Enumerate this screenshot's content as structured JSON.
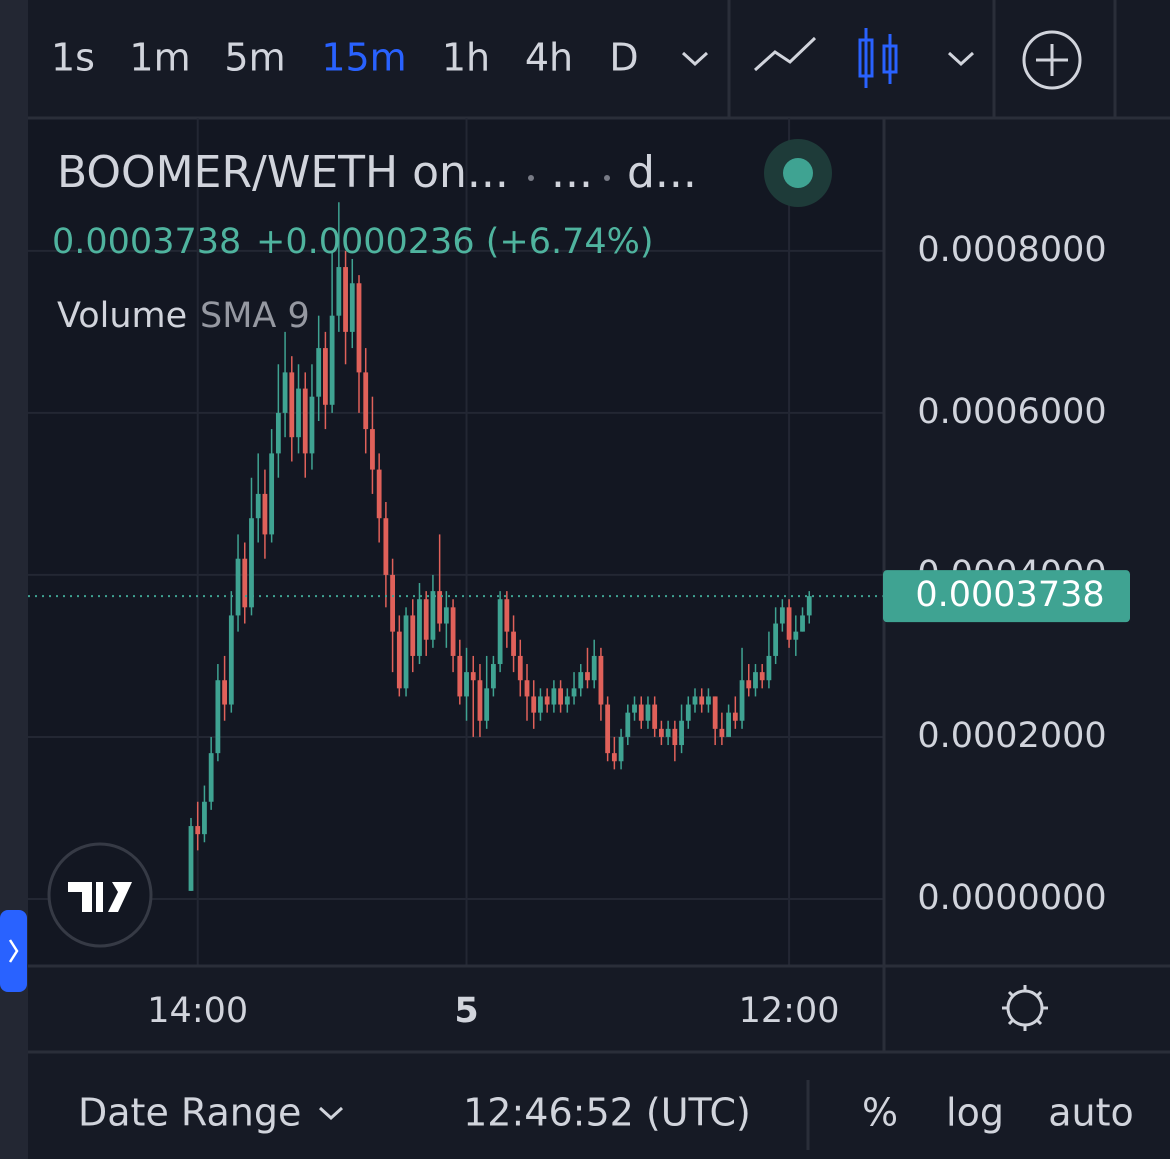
{
  "toolbar": {
    "intervals": [
      "1s",
      "1m",
      "5m",
      "15m",
      "1h",
      "4h",
      "D"
    ],
    "active": 3
  },
  "legend": {
    "symbol": [
      "BOOMER/WETH on...",
      "...",
      "d..."
    ],
    "change": "+0.0000236 (+6.74%)",
    "volume": "Volume",
    "sma": "SMA 9"
  },
  "bottom_bar": {
    "date_range": "Date Range",
    "clock": "12:46:52 (UTC)",
    "percent": "%",
    "log": "log",
    "auto": "auto"
  },
  "chart_data": {
    "type": "candlestick",
    "categories": [
      null,
      "14:00",
      null,
      null,
      null,
      null,
      null,
      null,
      null,
      null,
      null,
      null,
      null,
      null,
      null,
      null,
      null,
      null,
      null,
      null,
      null,
      null,
      null,
      null,
      null,
      null,
      null,
      null,
      null,
      null,
      null,
      null,
      null,
      null,
      null,
      null,
      null,
      null,
      null,
      null,
      null,
      "5",
      null,
      null,
      null,
      null,
      null,
      null,
      null,
      null,
      null,
      null,
      null,
      null,
      null,
      null,
      null,
      null,
      null,
      null,
      null,
      null,
      null,
      null,
      null,
      null,
      null,
      null,
      null,
      null,
      null,
      null,
      null,
      null,
      null,
      null,
      null,
      null,
      null,
      null,
      null,
      null,
      null,
      null,
      null,
      null,
      null,
      null,
      null,
      "12:00",
      null,
      null,
      null
    ],
    "open": [
      1e-05,
      9e-05,
      8e-05,
      0.00012,
      0.00018,
      0.00027,
      0.00024,
      0.00035,
      0.00042,
      0.00036,
      0.00047,
      0.0005,
      0.00045,
      0.00055,
      0.0006,
      0.00065,
      0.00057,
      0.00063,
      0.00055,
      0.00062,
      0.00068,
      0.00061,
      0.00072,
      0.00078,
      0.0007,
      0.00076,
      0.00065,
      0.00058,
      0.00053,
      0.00047,
      0.0004,
      0.00033,
      0.00026,
      0.00035,
      0.0003,
      0.00037,
      0.00032,
      0.00038,
      0.00034,
      0.00036,
      0.0003,
      0.00025,
      0.00028,
      0.00027,
      0.00022,
      0.00026,
      0.00029,
      0.00037,
      0.00033,
      0.0003,
      0.00027,
      0.00025,
      0.00023,
      0.00025,
      0.00024,
      0.00026,
      0.00024,
      0.00025,
      0.00026,
      0.00028,
      0.00027,
      0.0003,
      0.00024,
      0.00018,
      0.00017,
      0.0002,
      0.00023,
      0.00024,
      0.00022,
      0.00024,
      0.00021,
      0.0002,
      0.00021,
      0.00019,
      0.00022,
      0.00024,
      0.00025,
      0.00024,
      0.00025,
      0.00021,
      0.0002,
      0.00023,
      0.00022,
      0.00027,
      0.00026,
      0.00028,
      0.00027,
      0.0003,
      0.00034,
      0.00036,
      0.00032,
      0.00033,
      0.00035
    ],
    "high": [
      0.0001,
      0.00012,
      0.00014,
      0.0002,
      0.00029,
      0.0003,
      0.00038,
      0.00045,
      0.00044,
      0.00052,
      0.00055,
      0.00053,
      0.00058,
      0.00066,
      0.0007,
      0.00067,
      0.00066,
      0.00065,
      0.00066,
      0.00072,
      0.0007,
      0.0008,
      0.00086,
      0.0008,
      0.00079,
      0.00077,
      0.00068,
      0.00062,
      0.00055,
      0.00049,
      0.00042,
      0.00035,
      0.00036,
      0.00037,
      0.00039,
      0.00038,
      0.0004,
      0.00045,
      0.00038,
      0.00037,
      0.00032,
      0.00031,
      0.0003,
      0.00029,
      0.0003,
      0.0003,
      0.00038,
      0.00038,
      0.00035,
      0.00032,
      0.00029,
      0.00027,
      0.00026,
      0.00026,
      0.00027,
      0.00027,
      0.00026,
      0.00028,
      0.00029,
      0.00031,
      0.00032,
      0.00031,
      0.00025,
      0.0002,
      0.00021,
      0.00024,
      0.00025,
      0.00025,
      0.00025,
      0.00025,
      0.00022,
      0.00022,
      0.00022,
      0.00024,
      0.00025,
      0.00026,
      0.00026,
      0.00026,
      0.00025,
      0.00023,
      0.00024,
      0.00025,
      0.00031,
      0.00029,
      0.00029,
      0.00029,
      0.00033,
      0.00036,
      0.00037,
      0.00037,
      0.00035,
      0.00036,
      0.00038
    ],
    "low": [
      1e-05,
      6e-05,
      7e-05,
      0.00011,
      0.00017,
      0.00022,
      0.00023,
      0.00033,
      0.00034,
      0.00035,
      0.00044,
      0.00042,
      0.00044,
      0.00052,
      0.00057,
      0.00054,
      0.00055,
      0.00052,
      0.00053,
      0.00059,
      0.00058,
      0.0006,
      0.0007,
      0.00066,
      0.00068,
      0.0006,
      0.00055,
      0.0005,
      0.00044,
      0.00036,
      0.00028,
      0.00025,
      0.00025,
      0.00028,
      0.00029,
      0.0003,
      0.00031,
      0.00033,
      0.00031,
      0.00028,
      0.00024,
      0.00022,
      0.0002,
      0.0002,
      0.00021,
      0.00025,
      0.00028,
      0.00031,
      0.00028,
      0.00025,
      0.00022,
      0.00021,
      0.00022,
      0.00023,
      0.00023,
      0.00023,
      0.00023,
      0.00024,
      0.00025,
      0.00026,
      0.00026,
      0.00022,
      0.00017,
      0.00016,
      0.00016,
      0.00019,
      0.00022,
      0.00021,
      0.00021,
      0.0002,
      0.00019,
      0.00019,
      0.00017,
      0.00018,
      0.00021,
      0.00023,
      0.00023,
      0.00023,
      0.00019,
      0.00019,
      0.0002,
      0.00021,
      0.00021,
      0.00025,
      0.00025,
      0.00026,
      0.00026,
      0.00029,
      0.00033,
      0.00031,
      0.0003,
      0.00033,
      0.00034
    ],
    "close": [
      9e-05,
      8e-05,
      0.00012,
      0.00018,
      0.00027,
      0.00024,
      0.00035,
      0.00042,
      0.00036,
      0.00047,
      0.0005,
      0.00045,
      0.00055,
      0.0006,
      0.00065,
      0.00057,
      0.00063,
      0.00055,
      0.00062,
      0.00068,
      0.00061,
      0.00072,
      0.00078,
      0.0007,
      0.00076,
      0.00065,
      0.00058,
      0.00053,
      0.00047,
      0.0004,
      0.00033,
      0.00026,
      0.00035,
      0.0003,
      0.00037,
      0.00032,
      0.00038,
      0.00034,
      0.00036,
      0.0003,
      0.00025,
      0.00028,
      0.00027,
      0.00022,
      0.00026,
      0.00029,
      0.00037,
      0.00033,
      0.0003,
      0.00027,
      0.00025,
      0.00023,
      0.00025,
      0.00024,
      0.00026,
      0.00024,
      0.00025,
      0.00026,
      0.00028,
      0.00027,
      0.0003,
      0.00024,
      0.00018,
      0.00017,
      0.0002,
      0.00023,
      0.00024,
      0.00022,
      0.00024,
      0.00021,
      0.0002,
      0.00021,
      0.00019,
      0.00022,
      0.00024,
      0.00025,
      0.00024,
      0.00025,
      0.00021,
      0.0002,
      0.00023,
      0.00022,
      0.00027,
      0.00026,
      0.00028,
      0.00027,
      0.0003,
      0.00034,
      0.00036,
      0.00032,
      0.00033,
      0.00035,
      0.0003738
    ],
    "up_color": "#3fa392",
    "down_color": "#e0615a",
    "ylim": [
      -8.15e-05,
      0.000964
    ],
    "yticks": [
      {
        "value": 0,
        "label": "0.0000000"
      },
      {
        "value": 0.0002,
        "label": "0.0002000"
      },
      {
        "value": 0.0004,
        "label": "0.0004000"
      },
      {
        "value": 0.0006,
        "label": "0.0006000"
      },
      {
        "value": 0.0008,
        "label": "0.0008000"
      }
    ],
    "grid": true
  }
}
